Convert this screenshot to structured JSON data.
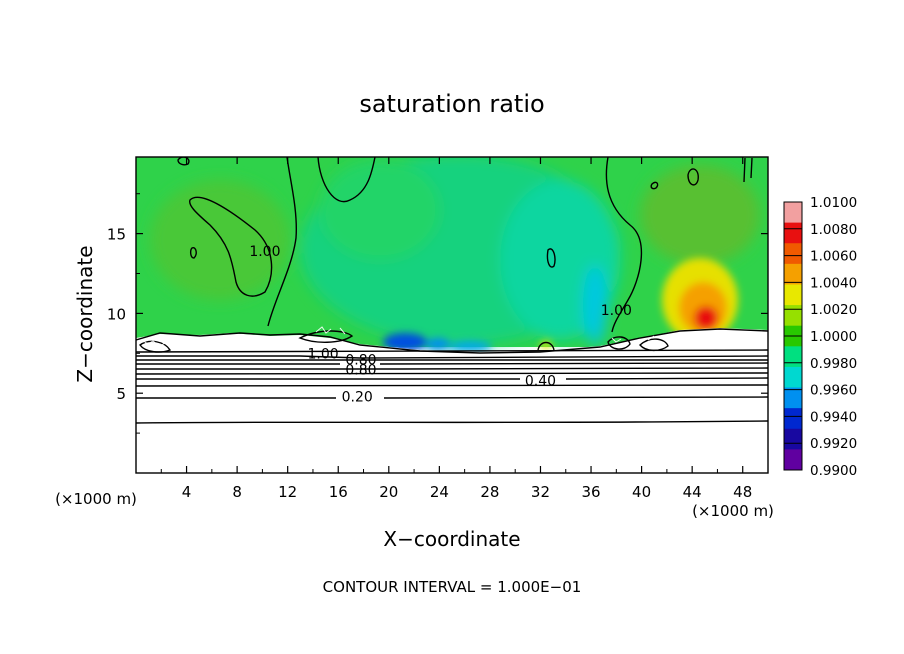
{
  "chart_data": {
    "type": "heatmap",
    "title": "saturation ratio",
    "xlabel": "X−coordinate",
    "ylabel": "Z−coordinate",
    "x_unit": "(×1000 m)",
    "z_unit": "(×1000 m)",
    "xlim": [
      0,
      50
    ],
    "ylim": [
      0,
      19.8
    ],
    "x_ticks": [
      4,
      8,
      12,
      16,
      20,
      24,
      28,
      32,
      36,
      40,
      44,
      48
    ],
    "y_ticks": [
      5,
      10,
      15
    ],
    "x_tick_labels": [
      "4",
      "8",
      "12",
      "16",
      "20",
      "24",
      "28",
      "32",
      "36",
      "40",
      "44",
      "48"
    ],
    "y_tick_labels": [
      "5",
      "10",
      "15"
    ],
    "colorbar": {
      "min": 0.99,
      "max": 1.01,
      "labels": [
        "1.0100",
        "1.0080",
        "1.0060",
        "1.0040",
        "1.0020",
        "1.0000",
        "0.9980",
        "0.9960",
        "0.9940",
        "0.9920",
        "0.9900"
      ],
      "colors": [
        "#f2a0a0",
        "#e81010",
        "#f05a00",
        "#f5a000",
        "#e8e800",
        "#96e000",
        "#28c800",
        "#00e080",
        "#00d8d0",
        "#0090f0",
        "#0028d0",
        "#1808a0",
        "#6000a0"
      ]
    },
    "contour_labels": [
      {
        "text": "1.00",
        "x": 10.2,
        "z": 13.9
      },
      {
        "text": "1.00",
        "x": 38.0,
        "z": 10.2
      },
      {
        "text": "1.00",
        "x": 14.8,
        "z": 7.5
      },
      {
        "text": "0.80",
        "x": 17.8,
        "z": 7.1
      },
      {
        "text": "0.80",
        "x": 17.8,
        "z": 6.5
      },
      {
        "text": "0.40",
        "x": 32.0,
        "z": 5.8
      },
      {
        "text": "0.20",
        "x": 17.5,
        "z": 4.8
      }
    ],
    "contour_interval_text": "CONTOUR INTERVAL = 1.000E−01"
  }
}
